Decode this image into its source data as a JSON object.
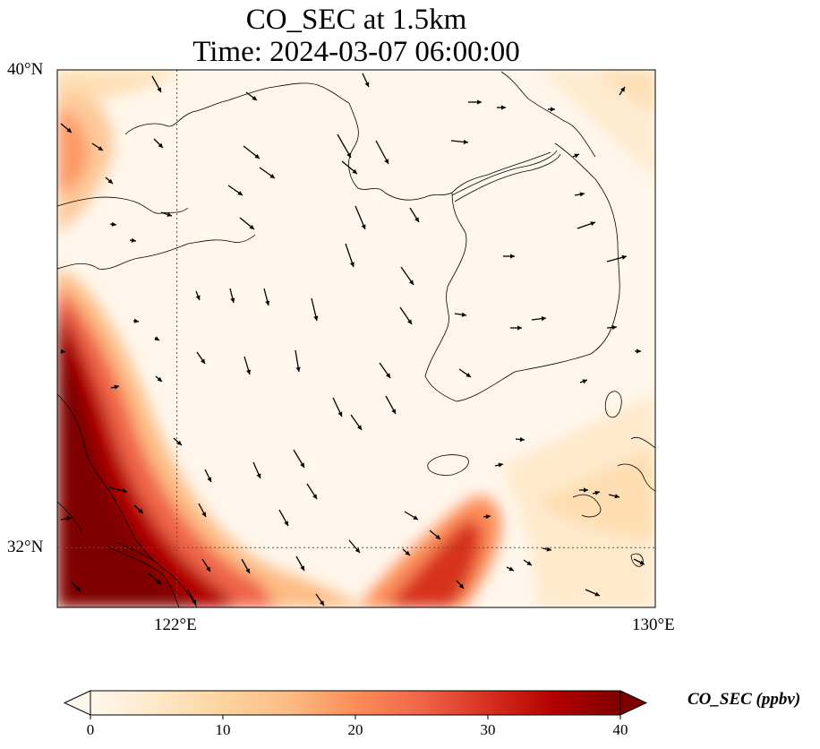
{
  "title": {
    "line1": "CO_SEC at 1.5km",
    "line2": "Time: 2024-03-07 06:00:00"
  },
  "map": {
    "lon_range": [
      120,
      130
    ],
    "lat_range": [
      31,
      40
    ],
    "x_ticks": [
      {
        "value": 122,
        "label": "122°E"
      },
      {
        "value": 130,
        "label": "130°E"
      }
    ],
    "y_ticks": [
      {
        "value": 40,
        "label": "40°N"
      },
      {
        "value": 32,
        "label": "32°N"
      }
    ],
    "gridlines": "dotted at 122°E and 32°N",
    "coastline_color": "#000000"
  },
  "colorbar": {
    "title": "CO_SEC (ppbv)",
    "ticks": [
      {
        "value": 0,
        "label": "0"
      },
      {
        "value": 10,
        "label": "10"
      },
      {
        "value": 20,
        "label": "20"
      },
      {
        "value": 30,
        "label": "30"
      },
      {
        "value": 40,
        "label": "40"
      }
    ],
    "range": [
      0,
      40
    ],
    "extend": "both",
    "colors": [
      "#fff7ec",
      "#fee8c8",
      "#fdd49e",
      "#fdbb84",
      "#fc8d59",
      "#ef6548",
      "#d7301f",
      "#b30000",
      "#7f0000"
    ]
  },
  "chart_data": {
    "type": "heatmap",
    "variable": "CO_SEC",
    "level": "1.5km",
    "time": "2024-03-07 06:00:00",
    "units": "ppbv",
    "description_of_field": "High CO_SEC (about 35-40 ppbv) along the Chinese coast in the southwest corner (120-121.5°E, 31-35°N), a plume extending toward 126.5-127°E around 31.5-32.5°N, moderate values (10-20) in the northwest near 120°E 38-39.5°N; low values (0-5) over the Yellow Sea and Korean Peninsula.",
    "field_samples": [
      {
        "lon": 120.3,
        "lat": 32.0,
        "value": 40
      },
      {
        "lon": 120.8,
        "lat": 33.5,
        "value": 36
      },
      {
        "lon": 121.3,
        "lat": 31.4,
        "value": 40
      },
      {
        "lon": 122.5,
        "lat": 31.3,
        "value": 32
      },
      {
        "lon": 126.5,
        "lat": 31.6,
        "value": 36
      },
      {
        "lon": 126.8,
        "lat": 32.2,
        "value": 24
      },
      {
        "lon": 120.4,
        "lat": 39.0,
        "value": 18
      },
      {
        "lon": 124.0,
        "lat": 36.0,
        "value": 1
      },
      {
        "lon": 128.0,
        "lat": 37.5,
        "value": 2
      },
      {
        "lon": 129.5,
        "lat": 32.0,
        "value": 6
      }
    ],
    "wind_vectors": "black arrows, predominantly north-northwest flow over the Yellow Sea, westerly flow over Korea and the East Sea"
  }
}
